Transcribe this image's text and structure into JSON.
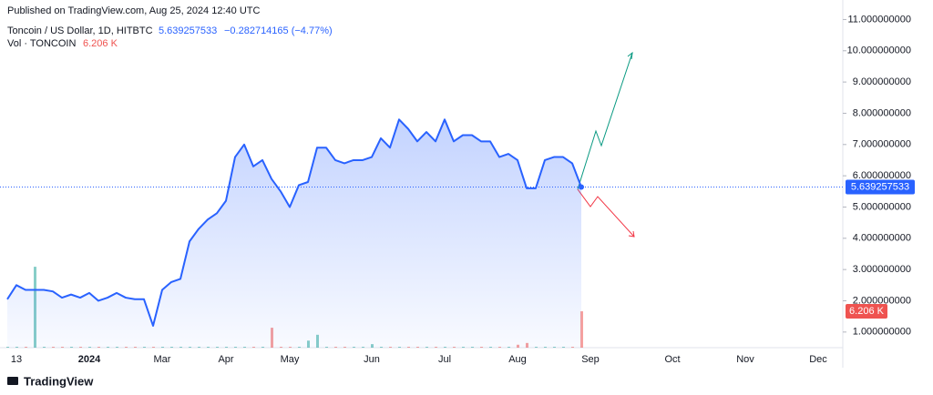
{
  "chart_data": {
    "type": "line",
    "published": "Published on TradingView.com, Aug 25, 2024 12:40 UTC",
    "title": "Toncoin / US Dollar, 1D, HITBTC",
    "last_price": "5.639257533",
    "change": "−0.282714165 (−4.77%)",
    "brand": "TradingView",
    "categories": [
      null,
      "13",
      null,
      null,
      null,
      null,
      null,
      null,
      null,
      "2024",
      null,
      null,
      null,
      null,
      null,
      null,
      null,
      "Mar",
      null,
      null,
      null,
      null,
      null,
      null,
      "Apr",
      null,
      null,
      null,
      null,
      null,
      null,
      "May",
      null,
      null,
      null,
      null,
      null,
      null,
      null,
      null,
      "Jun",
      null,
      null,
      null,
      null,
      null,
      null,
      null,
      "Jul",
      null,
      null,
      null,
      null,
      null,
      null,
      null,
      "Aug",
      null,
      null,
      null,
      null,
      null,
      null,
      null,
      "Sep",
      null,
      null,
      null,
      null,
      null,
      null,
      null,
      null,
      "Oct",
      null,
      null,
      null,
      null,
      null,
      null,
      null,
      "Nov",
      null,
      null,
      null,
      null,
      null,
      null,
      null,
      "Dec",
      null,
      null
    ],
    "series": [
      {
        "name": "Toncoin / US Dollar",
        "color": "#2962ff",
        "values": [
          2.05,
          2.5,
          2.35,
          2.35,
          2.35,
          2.3,
          2.1,
          2.2,
          2.1,
          2.25,
          2.0,
          2.1,
          2.25,
          2.1,
          2.05,
          2.05,
          1.2,
          2.35,
          2.6,
          2.7,
          3.9,
          4.3,
          4.6,
          4.8,
          5.2,
          6.6,
          7.0,
          6.3,
          6.5,
          5.9,
          5.5,
          5.0,
          5.7,
          5.8,
          6.9,
          6.9,
          6.5,
          6.4,
          6.5,
          6.5,
          6.6,
          7.2,
          6.9,
          7.8,
          7.5,
          7.1,
          7.4,
          7.1,
          7.8,
          7.1,
          7.3,
          7.3,
          7.1,
          7.1,
          6.6,
          6.7,
          6.5,
          5.6,
          5.6,
          6.5,
          6.6,
          6.6,
          6.4,
          5.639257533,
          null,
          null,
          null,
          null,
          null,
          null,
          null,
          null,
          null,
          null,
          null,
          null,
          null,
          null,
          null,
          null,
          null,
          null,
          null,
          null,
          null,
          null,
          null,
          null,
          null,
          null,
          null,
          null
        ]
      }
    ],
    "volume": {
      "name": "Vol · TONCOIN",
      "last_label": "6.206 K",
      "up_color": "#26a69a",
      "down_color": "#ef5350",
      "values": [
        0.15,
        0.15,
        0.15,
        13.8,
        0.15,
        0.15,
        0.15,
        0.15,
        0.15,
        0.15,
        0.15,
        0.15,
        0.15,
        0.15,
        0.15,
        0.15,
        0.15,
        0.15,
        0.15,
        0.15,
        0.15,
        0.15,
        0.15,
        0.15,
        0.15,
        0.15,
        0.15,
        0.15,
        0.15,
        3.4,
        0.15,
        0.15,
        0.15,
        1.2,
        2.2,
        0.15,
        0.15,
        0.15,
        0.15,
        0.15,
        0.6,
        0.15,
        0.15,
        0.15,
        0.15,
        0.15,
        0.15,
        0.15,
        0.15,
        0.15,
        0.15,
        0.15,
        0.15,
        0.15,
        0.15,
        0.15,
        0.5,
        0.8,
        0.15,
        0.15,
        0.15,
        0.15,
        0.15,
        6.206,
        null,
        null,
        null,
        null,
        null,
        null,
        null,
        null,
        null,
        null,
        null,
        null,
        null,
        null,
        null,
        null,
        null,
        null,
        null,
        null,
        null,
        null,
        null,
        null,
        null,
        null,
        null,
        null
      ],
      "ylim": [
        0,
        56.5
      ]
    },
    "ylim": [
      0.5,
      11.1
    ],
    "yticks": [
      {
        "value": 1,
        "label": "1.000000000"
      },
      {
        "value": 2,
        "label": "2.000000000"
      },
      {
        "value": 3,
        "label": "3.000000000"
      },
      {
        "value": 4,
        "label": "4.000000000"
      },
      {
        "value": 5,
        "label": "5.000000000"
      },
      {
        "value": 6,
        "label": "6.000000000"
      },
      {
        "value": 7,
        "label": "7.000000000"
      },
      {
        "value": 8,
        "label": "8.000000000"
      },
      {
        "value": 9,
        "label": "9.000000000"
      },
      {
        "value": 10,
        "label": "10.000000000"
      },
      {
        "value": 11,
        "label": "11.000000000"
      }
    ],
    "grid": false
  }
}
